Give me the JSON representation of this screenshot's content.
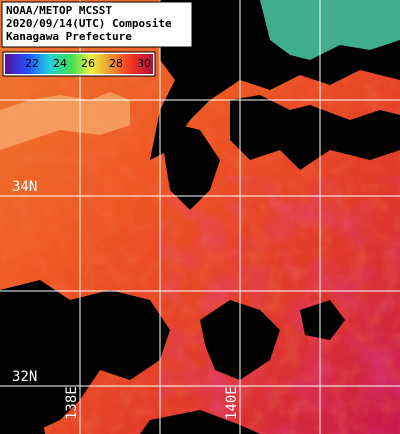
{
  "title_lines": [
    "NOAA/METOP MCSST",
    "2020/09/14(UTC) Composite",
    "Kanagawa Prefecture"
  ],
  "colorbar": {
    "ticks": [
      22,
      24,
      26,
      28,
      30
    ]
  },
  "grid_labels": {
    "lat": [
      "34N",
      "32N"
    ],
    "lon": [
      "138E",
      "140E"
    ]
  }
}
